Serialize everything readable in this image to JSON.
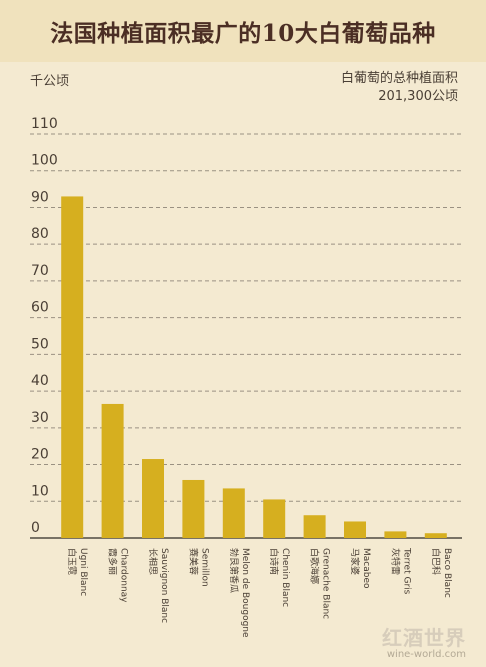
{
  "title": "法国种植面积最广的10大白葡萄品种",
  "unit_label": "千公顷",
  "total": {
    "label": "白葡萄的总种植面积",
    "value": "201,300公顷"
  },
  "watermark": {
    "main": "红酒世界",
    "sub": "wine-world.com"
  },
  "colors": {
    "bar": "#d6af1f",
    "grid": "#9a9182",
    "background": "#f4ead1"
  },
  "chart_data": {
    "type": "bar",
    "ylim": [
      0,
      110
    ],
    "yticks": [
      0,
      10,
      20,
      30,
      40,
      50,
      60,
      70,
      80,
      90,
      100,
      110
    ],
    "grid": true,
    "categories": [
      {
        "zh": "白玉霓",
        "en": "Ugni Blanc"
      },
      {
        "zh": "霞多丽",
        "en": "Chardonnay"
      },
      {
        "zh": "长相思",
        "en": "Sauvignon Blanc"
      },
      {
        "zh": "赛美蓉",
        "en": "Semillon"
      },
      {
        "zh": "勃艮第香瓜",
        "en": "Melon de Bougogne"
      },
      {
        "zh": "白诗南",
        "en": "Chenin Blanc"
      },
      {
        "zh": "白歌海娜",
        "en": "Grenache Blanc"
      },
      {
        "zh": "马家婆",
        "en": "Macabeo"
      },
      {
        "zh": "灰特雷",
        "en": "Terret Gris"
      },
      {
        "zh": "白巴科",
        "en": "Baco Blanc"
      }
    ],
    "values": [
      93,
      36.5,
      21.5,
      15.8,
      13.5,
      10.5,
      6.2,
      4.5,
      1.8,
      1.3
    ]
  }
}
